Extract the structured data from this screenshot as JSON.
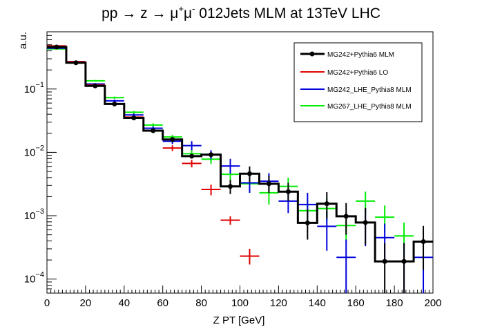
{
  "chart_data": {
    "type": "line",
    "title": {
      "prefix": "pp → z → μ",
      "sup1": "+",
      "mid": "μ",
      "sup2": "-",
      "suffix": " 012Jets MLM at 13TeV LHC"
    },
    "xlabel": "Z PT [GeV]",
    "ylabel": "a.u.",
    "xlim": [
      0,
      200
    ],
    "ylim": [
      6e-05,
      0.8
    ],
    "yscale": "log",
    "legend_position": "top-right",
    "x_ticks": [
      "0",
      "20",
      "40",
      "60",
      "80",
      "100",
      "120",
      "140",
      "160",
      "180",
      "200"
    ],
    "x_tick_values": [
      0,
      20,
      40,
      60,
      80,
      100,
      120,
      140,
      160,
      180,
      200
    ],
    "y_ticks": [
      {
        "base": "10",
        "exp": "−1",
        "value": 0.1
      },
      {
        "base": "10",
        "exp": "−2",
        "value": 0.01
      },
      {
        "base": "10",
        "exp": "−3",
        "value": 0.001
      },
      {
        "base": "10",
        "exp": "−4",
        "value": 0.0001
      }
    ],
    "bin_width": 10,
    "series": [
      {
        "name": "MG242+Pythia6 MLM",
        "color": "#000000",
        "style": "histogram",
        "marker": "circle",
        "bin_lows": [
          0,
          10,
          20,
          30,
          40,
          50,
          60,
          70,
          80,
          90,
          100,
          110,
          120,
          130,
          140,
          150,
          160,
          170,
          180,
          190
        ],
        "values": [
          0.46,
          0.26,
          0.112,
          0.058,
          0.035,
          0.022,
          0.016,
          0.0087,
          0.0092,
          0.0029,
          0.0046,
          0.0032,
          0.0024,
          0.00077,
          0.00155,
          0.00098,
          0.00078,
          0.00019,
          0.00019,
          0.00039
        ],
        "errors_low": [
          0.005,
          0.004,
          0.003,
          0.002,
          0.0015,
          0.001,
          0.0009,
          0.0007,
          0.0008,
          0.0007,
          0.0012,
          0.0009,
          0.0007,
          0.00035,
          0.00065,
          0.00048,
          0.00043,
          0.00013,
          0.00013,
          0.00025
        ],
        "errors_high": [
          0.005,
          0.004,
          0.003,
          0.002,
          0.0015,
          0.001,
          0.0009,
          0.0007,
          0.0008,
          0.0008,
          0.0014,
          0.0011,
          0.0009,
          0.0005,
          0.0008,
          0.0006,
          0.00055,
          0.00018,
          0.00018,
          0.0003
        ]
      },
      {
        "name": "MG242+Pythia6 LO",
        "color": "#e00000",
        "style": "crosses",
        "x": [
          5,
          15,
          25,
          35,
          45,
          55,
          65,
          75,
          85,
          95,
          105
        ],
        "values": [
          0.48,
          0.27,
          0.116,
          0.058,
          0.036,
          0.022,
          0.0117,
          0.0067,
          0.0026,
          0.00085,
          0.00023
        ],
        "errors_low": [
          0.008,
          0.006,
          0.004,
          0.003,
          0.002,
          0.0015,
          0.0012,
          0.0009,
          0.0005,
          0.00013,
          6e-05
        ],
        "errors_high": [
          0.008,
          0.006,
          0.004,
          0.003,
          0.002,
          0.0015,
          0.0012,
          0.0009,
          0.0005,
          0.00013,
          7e-05
        ]
      },
      {
        "name": "MG242_LHE_Pythia8 MLM",
        "color": "#0000dd",
        "style": "crosses",
        "x": [
          5,
          15,
          25,
          35,
          45,
          55,
          65,
          75,
          85,
          95,
          105,
          115,
          125,
          135,
          145,
          155,
          165,
          175,
          185,
          195
        ],
        "values": [
          0.44,
          0.27,
          0.12,
          0.065,
          0.039,
          0.024,
          0.015,
          0.0128,
          0.0093,
          0.0061,
          0.0033,
          0.0035,
          0.0017,
          0.0015,
          0.00068,
          0.00022,
          0.00078,
          0.00045,
          0.00019,
          0.00022
        ],
        "errors_low": [
          0.008,
          0.006,
          0.004,
          0.003,
          0.002,
          0.0017,
          0.0015,
          0.002,
          0.0015,
          0.0015,
          0.001,
          0.001,
          0.0006,
          0.0006,
          0.0004,
          0.00016,
          0.00045,
          0.00027,
          0.00013,
          0.00016
        ],
        "errors_high": [
          0.008,
          0.006,
          0.004,
          0.003,
          0.002,
          0.0017,
          0.0015,
          0.0022,
          0.0015,
          0.0018,
          0.0012,
          0.0012,
          0.0008,
          0.0008,
          0.0005,
          0.0002,
          0.0005,
          0.0003,
          0.00018,
          0.00022
        ]
      },
      {
        "name": "MG267_LHE_Pythia8 MLM",
        "color": "#00ee00",
        "style": "crosses",
        "x": [
          5,
          15,
          25,
          35,
          45,
          55,
          65,
          75,
          85,
          95,
          105,
          115,
          125,
          135,
          145,
          155,
          165,
          175,
          185,
          195
        ],
        "values": [
          0.43,
          0.265,
          0.135,
          0.073,
          0.043,
          0.027,
          0.0175,
          0.0095,
          0.0078,
          0.0045,
          0.0032,
          0.0023,
          0.0029,
          0.0012,
          0.0013,
          0.0007,
          0.0017,
          0.00095,
          0.00048,
          0.00039
        ],
        "errors_low": [
          0.008,
          0.006,
          0.004,
          0.003,
          0.002,
          0.0017,
          0.0014,
          0.0013,
          0.0012,
          0.0012,
          0.0009,
          0.0008,
          0.0009,
          0.0005,
          0.0005,
          0.0003,
          0.0006,
          0.0004,
          0.00025,
          0.0002
        ],
        "errors_high": [
          0.008,
          0.006,
          0.004,
          0.003,
          0.002,
          0.0017,
          0.0014,
          0.0013,
          0.0012,
          0.0012,
          0.0011,
          0.0009,
          0.0011,
          0.0006,
          0.0006,
          0.0004,
          0.0007,
          0.0005,
          0.0003,
          0.00025
        ]
      }
    ]
  }
}
